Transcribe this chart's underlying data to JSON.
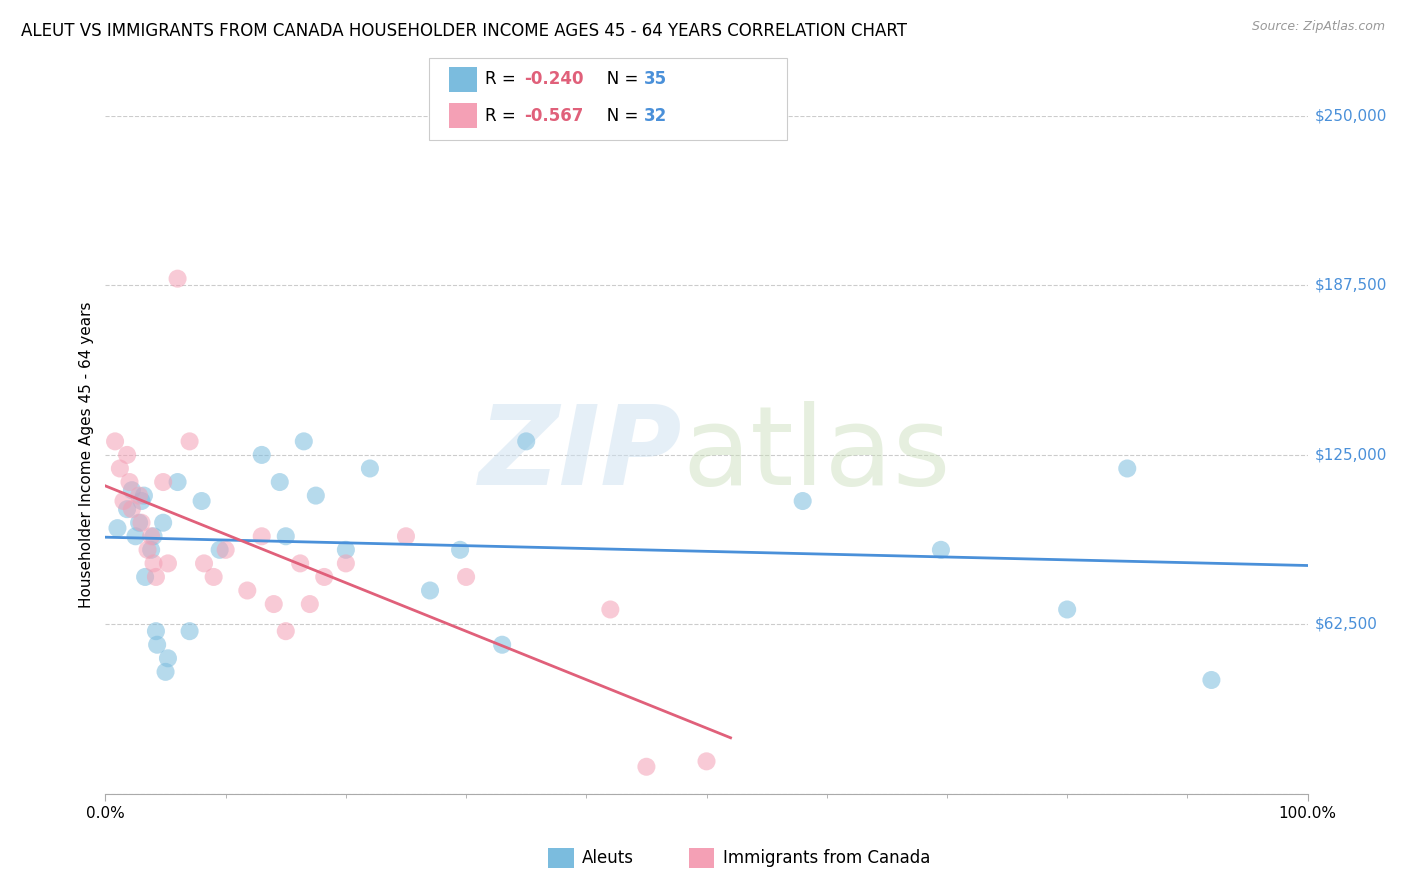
{
  "title": "ALEUT VS IMMIGRANTS FROM CANADA HOUSEHOLDER INCOME AGES 45 - 64 YEARS CORRELATION CHART",
  "source": "Source: ZipAtlas.com",
  "ylabel": "Householder Income Ages 45 - 64 years",
  "xlim": [
    0,
    1.0
  ],
  "ylim": [
    0,
    250000
  ],
  "yticks": [
    0,
    62500,
    125000,
    187500,
    250000
  ],
  "ytick_labels": [
    "",
    "$62,500",
    "$125,000",
    "$187,500",
    "$250,000"
  ],
  "xtick_labels": [
    "0.0%",
    "100.0%"
  ],
  "blue_color": "#7bbcde",
  "pink_color": "#f4a0b5",
  "blue_line_color": "#4a90d9",
  "pink_line_color": "#e0607a",
  "legend_label_aleuts": "Aleuts",
  "legend_label_immigrants": "Immigrants from Canada",
  "blue_r": -0.24,
  "blue_n": 35,
  "pink_r": -0.567,
  "pink_n": 32,
  "blue_x": [
    0.01,
    0.018,
    0.022,
    0.025,
    0.028,
    0.03,
    0.032,
    0.033,
    0.038,
    0.04,
    0.042,
    0.043,
    0.048,
    0.05,
    0.052,
    0.06,
    0.07,
    0.08,
    0.095,
    0.13,
    0.145,
    0.15,
    0.165,
    0.175,
    0.2,
    0.22,
    0.27,
    0.295,
    0.33,
    0.35,
    0.58,
    0.695,
    0.8,
    0.85,
    0.92
  ],
  "blue_y": [
    98000,
    105000,
    112000,
    95000,
    100000,
    108000,
    110000,
    80000,
    90000,
    95000,
    60000,
    55000,
    100000,
    45000,
    50000,
    115000,
    60000,
    108000,
    90000,
    125000,
    115000,
    95000,
    130000,
    110000,
    90000,
    120000,
    75000,
    90000,
    55000,
    130000,
    108000,
    90000,
    68000,
    120000,
    42000
  ],
  "pink_x": [
    0.008,
    0.012,
    0.015,
    0.018,
    0.02,
    0.022,
    0.028,
    0.03,
    0.035,
    0.038,
    0.04,
    0.042,
    0.048,
    0.052,
    0.06,
    0.07,
    0.082,
    0.09,
    0.1,
    0.118,
    0.13,
    0.14,
    0.15,
    0.162,
    0.17,
    0.182,
    0.2,
    0.25,
    0.3,
    0.42,
    0.45,
    0.5
  ],
  "pink_y": [
    130000,
    120000,
    108000,
    125000,
    115000,
    105000,
    110000,
    100000,
    90000,
    95000,
    85000,
    80000,
    115000,
    85000,
    190000,
    130000,
    85000,
    80000,
    90000,
    75000,
    95000,
    70000,
    60000,
    85000,
    70000,
    80000,
    85000,
    95000,
    80000,
    68000,
    10000,
    12000
  ],
  "background_color": "#ffffff",
  "grid_color": "#cccccc",
  "marker_size": 13,
  "marker_alpha": 0.55
}
